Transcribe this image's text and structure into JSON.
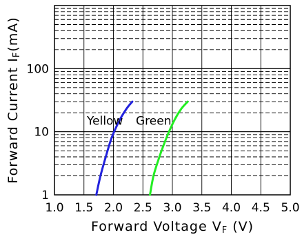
{
  "chart_data": {
    "type": "line",
    "xlabel": "Forward Voltage",
    "xlabel_symbol": "V",
    "xlabel_sub": "F",
    "xlabel_unit": "(V)",
    "ylabel": "Forward Current",
    "ylabel_symbol": "I",
    "ylabel_sub": "F",
    "ylabel_unit": "(mA)",
    "x_scale": "linear",
    "y_scale": "log",
    "xlim": [
      1.0,
      5.0
    ],
    "ylim": [
      1,
      1000
    ],
    "x_ticks": [
      1.0,
      1.5,
      2.0,
      2.5,
      3.0,
      3.5,
      4.0,
      4.5,
      5.0
    ],
    "x_tick_labels": [
      "1.0",
      "1.5",
      "2.0",
      "2.5",
      "3.0",
      "3.5",
      "4.0",
      "4.5",
      "5.0"
    ],
    "y_ticks": [
      1,
      10,
      100
    ],
    "y_tick_labels": [
      "1",
      "10",
      "100"
    ],
    "grid": true,
    "legend": "none",
    "series": [
      {
        "name": "Yellow",
        "color": "#2222dd",
        "x": [
          1.71,
          1.78,
          1.87,
          1.97,
          2.1,
          2.22,
          2.32
        ],
        "y": [
          1,
          2,
          4,
          8,
          15,
          23,
          30
        ]
      },
      {
        "name": "Green",
        "color": "#22ee22",
        "x": [
          2.62,
          2.68,
          2.78,
          2.9,
          3.03,
          3.15,
          3.26
        ],
        "y": [
          1,
          2,
          4,
          8,
          15,
          23,
          30
        ]
      }
    ],
    "annotations": [
      {
        "text": "Yellow",
        "x": 1.55,
        "y": 13
      },
      {
        "text": "Green",
        "x": 2.38,
        "y": 13
      }
    ]
  }
}
